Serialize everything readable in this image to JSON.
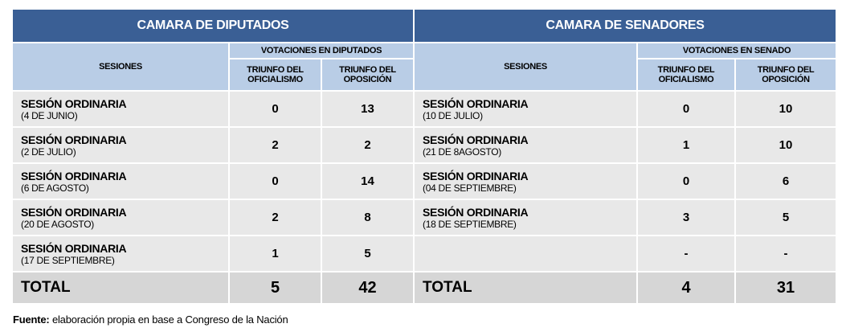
{
  "headers": {
    "diputados": "CAMARA DE DIPUTADOS",
    "senadores": "CAMARA DE SENADORES",
    "sesiones_left": "SESIONES",
    "sesiones_right": "SESIONES",
    "votes_diputados": "VOTACIONES EN DIPUTADOS",
    "votes_senado": "VOTACIONES EN SENADO",
    "oficialismo_l": "TRIUNFO DEL OFICIALISMO",
    "oposicion_l": "TRIUNFO DEL OPOSICIÓN",
    "oficialismo_r": "TRIUNFO DEL OFICIALISMO",
    "oposicion_r": "TRIUNFO DEL OPOSICIÓN"
  },
  "rows": [
    {
      "dip_title": "SESIÓN ORDINARIA",
      "dip_date": "(4 DE JUNIO)",
      "dip_of": "0",
      "dip_op": "13",
      "sen_title": "SESIÓN ORDINARIA",
      "sen_date": "(10 DE JULIO)",
      "sen_of": "0",
      "sen_op": "10"
    },
    {
      "dip_title": "SESIÓN ORDINARIA",
      "dip_date": "(2 DE JULIO)",
      "dip_of": "2",
      "dip_op": "2",
      "sen_title": "SESIÓN ORDINARIA",
      "sen_date": "(21 DE 8AGOSTO)",
      "sen_of": "1",
      "sen_op": "10"
    },
    {
      "dip_title": "SESIÓN ORDINARIA",
      "dip_date": "(6 DE AGOSTO)",
      "dip_of": "0",
      "dip_op": "14",
      "sen_title": "SESIÓN ORDINARIA",
      "sen_date": "(04 DE SEPTIEMBRE)",
      "sen_of": "0",
      "sen_op": "6"
    },
    {
      "dip_title": "SESIÓN ORDINARIA",
      "dip_date": "(20 DE AGOSTO)",
      "dip_of": "2",
      "dip_op": "8",
      "sen_title": "SESIÓN ORDINARIA",
      "sen_date": "(18 DE SEPTIEMBRE)",
      "sen_of": "3",
      "sen_op": "5"
    },
    {
      "dip_title": "SESIÓN ORDINARIA",
      "dip_date": "(17 DE SEPTIEMBRE)",
      "dip_of": "1",
      "dip_op": "5",
      "sen_title": "",
      "sen_date": "",
      "sen_of": "-",
      "sen_op": "-"
    }
  ],
  "totals": {
    "label_left": "TOTAL",
    "dip_of": "5",
    "dip_op": "42",
    "label_right": "TOTAL",
    "sen_of": "4",
    "sen_op": "31"
  },
  "source": {
    "label": "Fuente:",
    "text": " elaboración propia en base a Congreso de la Nación"
  },
  "colors": {
    "header_dark": "#3a5f95",
    "header_light": "#b9cde6",
    "row_bg": "#e8e8e8",
    "total_bg": "#d6d6d6"
  }
}
